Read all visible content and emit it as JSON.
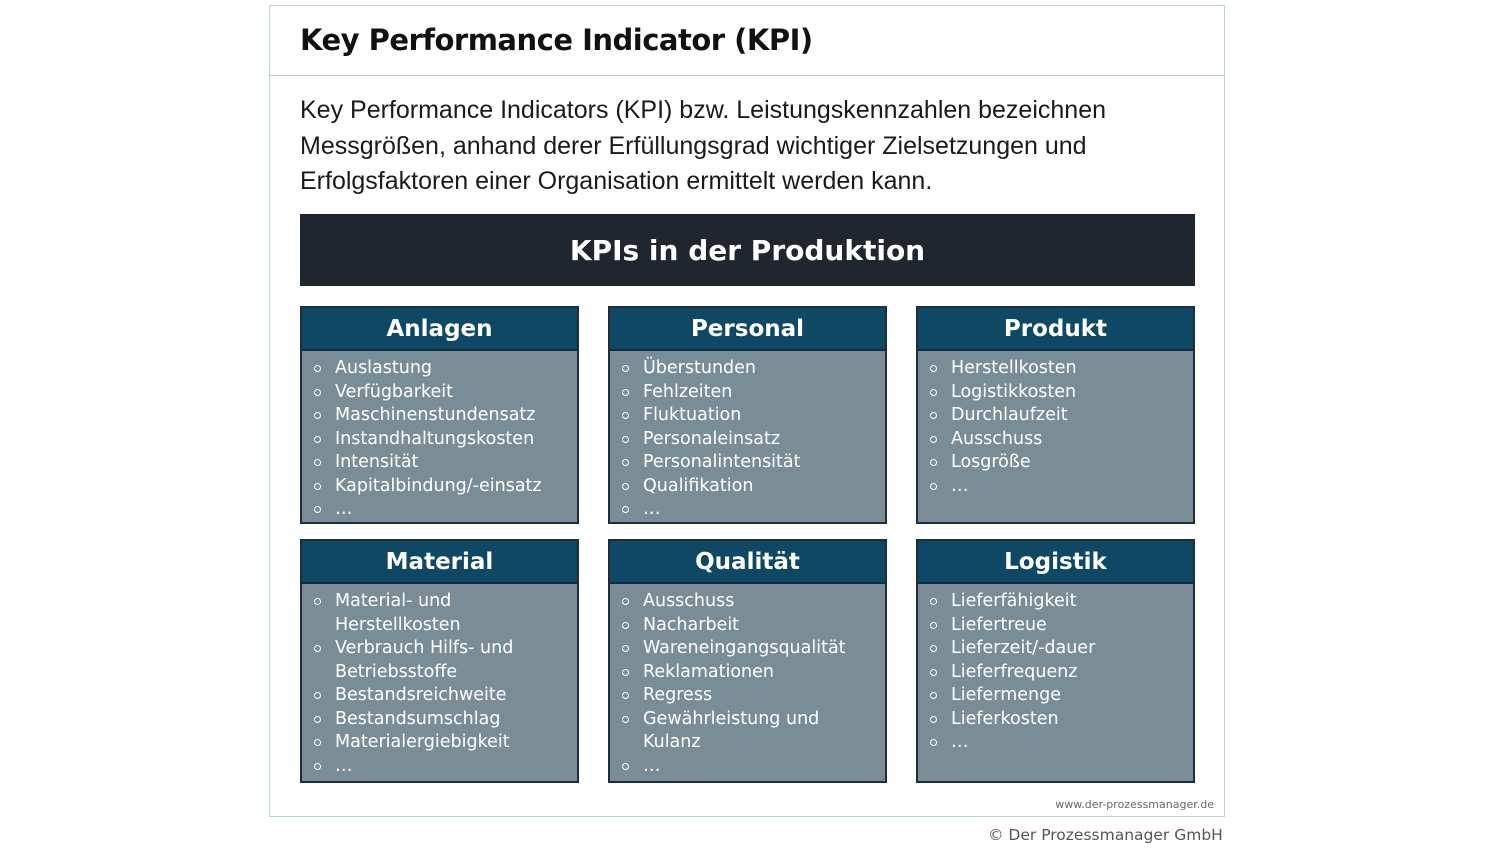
{
  "title": "Key Performance Indicator (KPI)",
  "intro": "Key Performance Indicators (KPI) bzw. Leistungskennzahlen bezeichnen Messgrößen, anhand derer Erfüllungsgrad wichtiger Zielsetzungen und Erfolgsfaktoren einer Organisation ermittelt werden kann.",
  "banner": "KPIs in der Produktion",
  "cards": [
    {
      "title": "Anlagen",
      "items": [
        "Auslastung",
        "Verfügbarkeit",
        "Maschinenstundensatz",
        "Instandhaltungskosten",
        "Intensität",
        "Kapitalbindung/-einsatz",
        "…"
      ]
    },
    {
      "title": "Personal",
      "items": [
        "Überstunden",
        "Fehlzeiten",
        "Fluktuation",
        "Personaleinsatz",
        "Personalintensität",
        "Qualifikation",
        "…"
      ]
    },
    {
      "title": "Produkt",
      "items": [
        "Herstellkosten",
        "Logistikkosten",
        "Durchlaufzeit",
        "Ausschuss",
        "Losgröße",
        "…"
      ]
    },
    {
      "title": "Material",
      "items": [
        "Material- und Herstellkosten",
        "Verbrauch Hilfs- und Betriebsstoffe",
        "Bestandsreichweite",
        "Bestandsumschlag",
        "Materialergiebigkeit",
        "…"
      ]
    },
    {
      "title": "Qualität",
      "items": [
        "Ausschuss",
        "Nacharbeit",
        "Wareneingangsqualität",
        "Reklamationen",
        "Regress",
        "Gewährleistung und Kulanz",
        "…"
      ]
    },
    {
      "title": "Logistik",
      "items": [
        "Lieferfähigkeit",
        "Liefertreue",
        "Lieferzeit/-dauer",
        "Lieferfrequenz",
        "Liefermenge",
        "Lieferkosten",
        "…"
      ]
    }
  ],
  "url": "www.der-prozessmanager.de",
  "copyright": "© Der Prozessmanager GmbH",
  "colors": {
    "banner": "#1f2630",
    "card_header": "#0f4864",
    "card_body": "#7a8d96",
    "frame_border": "#b9d3da"
  }
}
